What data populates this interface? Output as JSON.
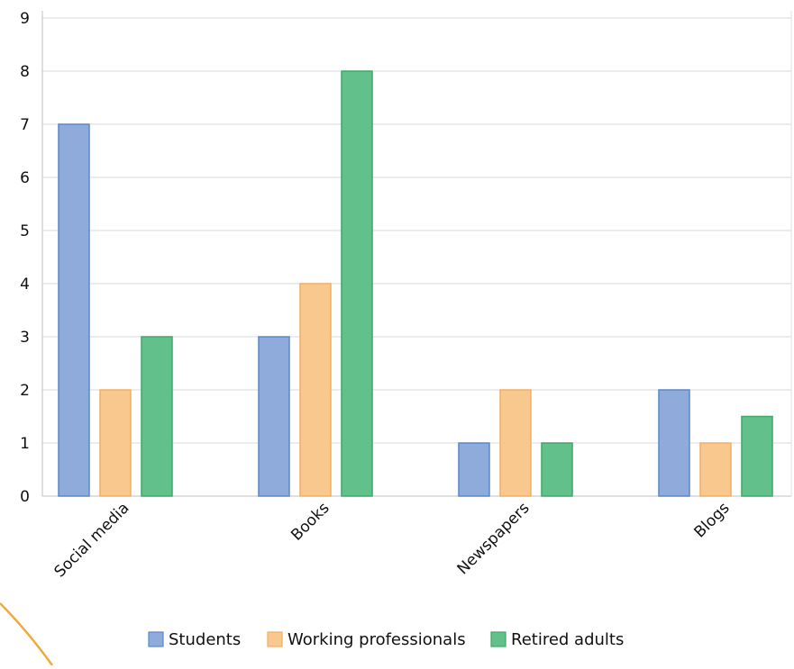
{
  "chart_data": {
    "type": "bar",
    "title": "",
    "xlabel": "",
    "ylabel": "",
    "categories": [
      "Social media",
      "Books",
      "Newspapers",
      "Blogs"
    ],
    "series": [
      {
        "name": "Students",
        "values": [
          7,
          3,
          1,
          2
        ],
        "color": "#8eabdb",
        "stroke": "#5b87cb"
      },
      {
        "name": "Working professionals",
        "values": [
          2,
          4,
          2,
          1
        ],
        "color": "#f9c88e",
        "stroke": "#f2ad62"
      },
      {
        "name": "Retired adults",
        "values": [
          3,
          8,
          1,
          1.5
        ],
        "color": "#62c08b",
        "stroke": "#3da86a"
      }
    ],
    "ylim": [
      0,
      9
    ],
    "yticks": [
      0,
      1,
      2,
      3,
      4,
      5,
      6,
      7,
      8,
      9
    ],
    "grid": true,
    "legend_position": "bottom",
    "accent_color": "#f2a93b"
  }
}
